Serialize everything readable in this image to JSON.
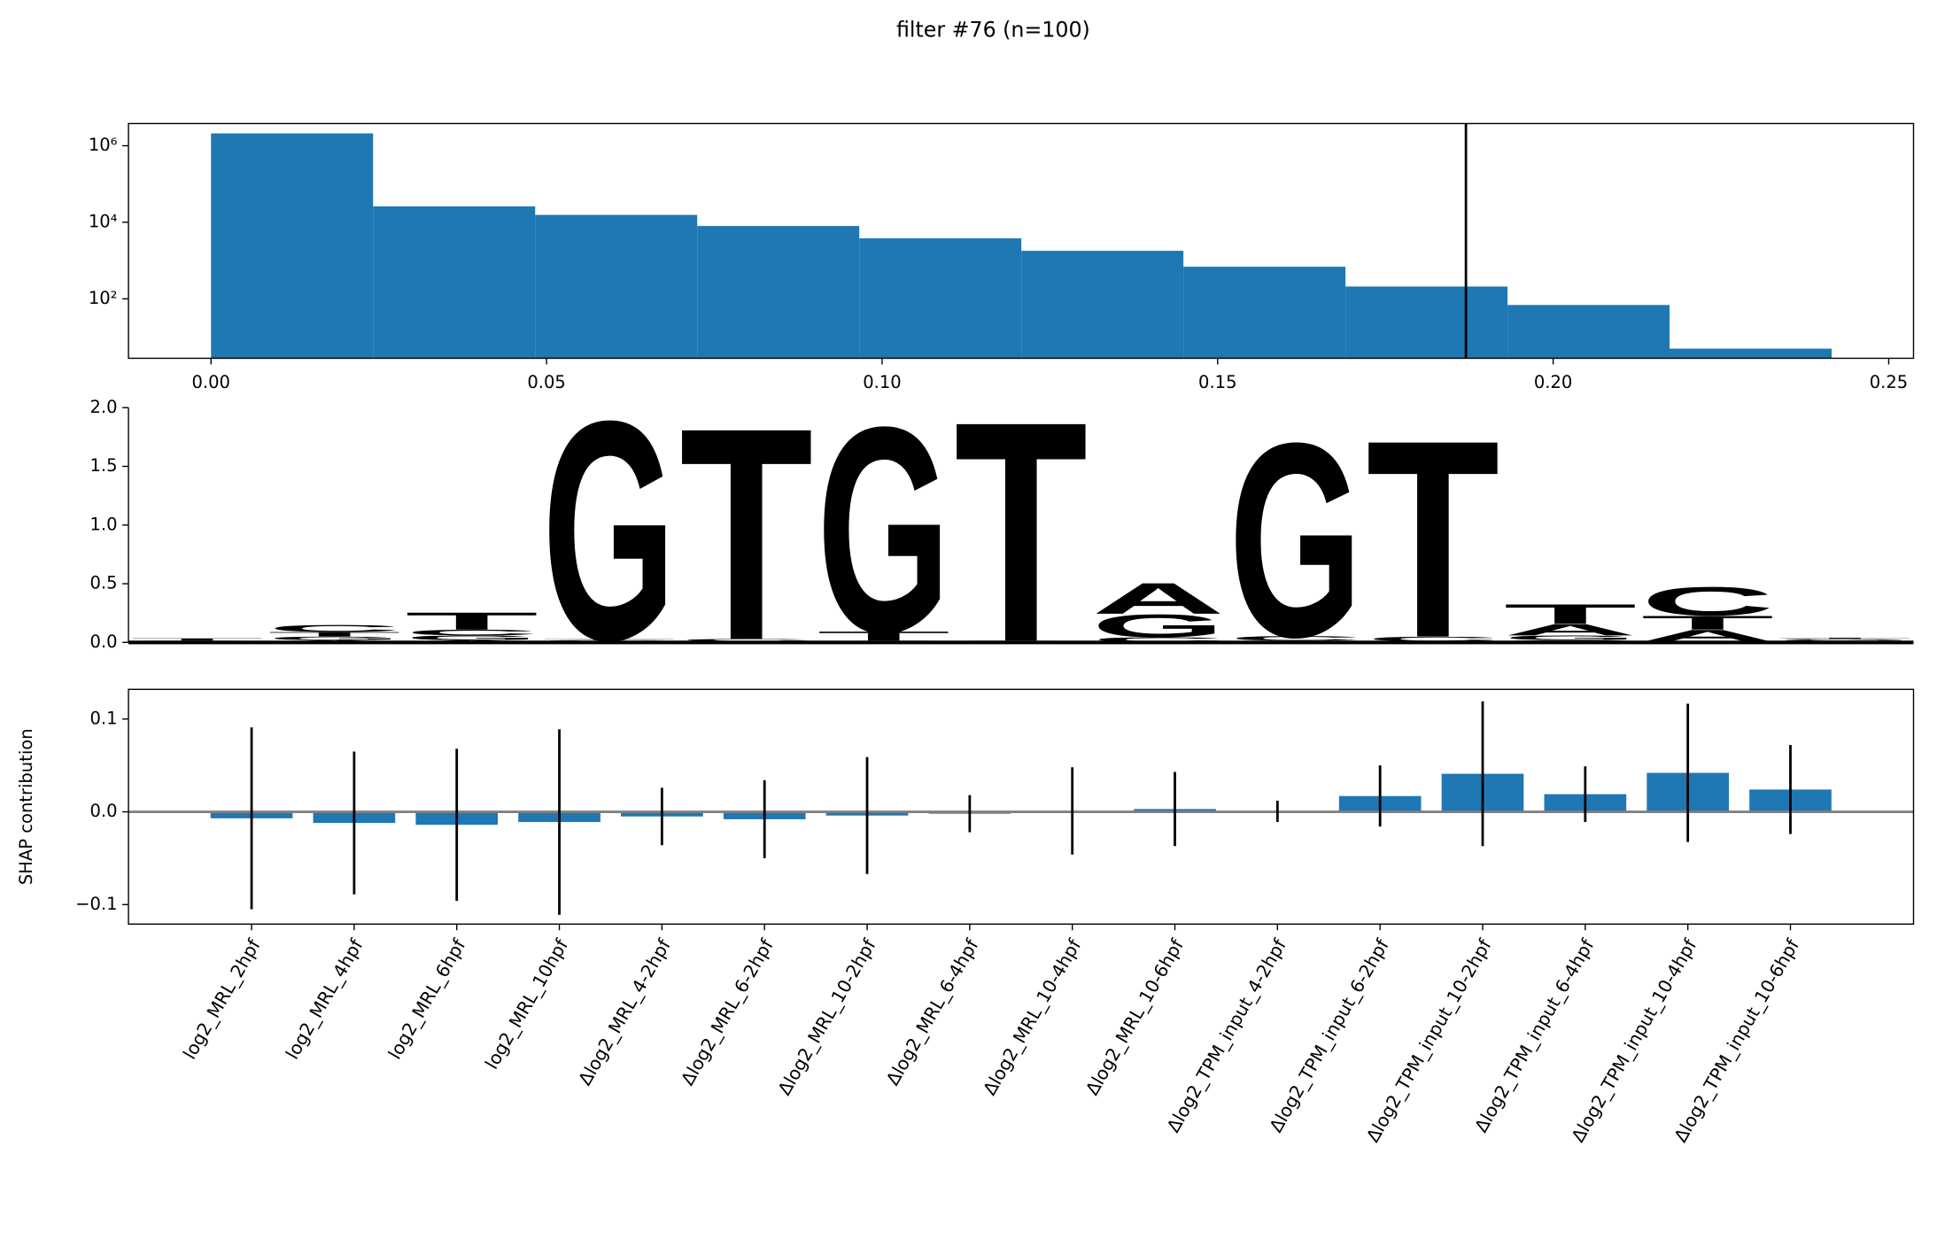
{
  "title": "filter #76 (n=100)",
  "chart_data": [
    {
      "type": "histogram",
      "bins": [
        0,
        0.02415,
        0.0483,
        0.07245,
        0.0966,
        0.12075,
        0.1449,
        0.16905,
        0.1932,
        0.21735,
        0.2415
      ],
      "values": [
        2100000,
        26000,
        15600,
        8000,
        3800,
        1800,
        690,
        210,
        69,
        5
      ],
      "color": "#1f77b4",
      "log_y": true,
      "xlim": [
        -0.0123,
        0.2537
      ],
      "ylim": [
        2.8,
        3800000
      ],
      "xticks": [
        {
          "value": 0,
          "label": "0.00"
        },
        0.05,
        {
          "value": 0.1,
          "label": "0.10"
        },
        0.15,
        {
          "value": 0.2,
          "label": "0.20"
        },
        0.25
      ],
      "yticks": [
        {
          "value": 100,
          "label": "10²"
        },
        {
          "value": 10000,
          "label": "10⁴"
        },
        {
          "value": 1000000,
          "label": "10⁶"
        }
      ],
      "vline": 0.187,
      "vline_color": "#000000"
    },
    {
      "type": "logo",
      "ylim": [
        0,
        2
      ],
      "yticks": [
        {
          "value": 0,
          "label": "0.0"
        },
        0.5,
        {
          "value": 1,
          "label": "1.0"
        },
        1.5,
        {
          "value": 2,
          "label": "2.0"
        }
      ],
      "series": [
        {
          "name": "A",
          "color": "#109648",
          "values": [
            0.005,
            0.02,
            0.02,
            0.01,
            0.005,
            0.005,
            0.005,
            0.27,
            0.01,
            0.005,
            0.1,
            0.1,
            0.01
          ]
        },
        {
          "name": "C",
          "color": "#255c99",
          "values": [
            0.005,
            0.06,
            0.05,
            0.01,
            0.02,
            0.01,
            0.005,
            0.04,
            0.04,
            0.04,
            0.02,
            0.25,
            0.01
          ]
        },
        {
          "name": "G",
          "color": "#f7b32b",
          "values": [
            0.005,
            0.03,
            0.04,
            1.92,
            0.005,
            1.8,
            0.005,
            0.2,
            1.7,
            0.005,
            0.04,
            0.01,
            0.01
          ]
        },
        {
          "name": "T",
          "color": "#d62839",
          "values": [
            0.02,
            0.04,
            0.15,
            0.01,
            1.86,
            0.08,
            1.93,
            0.005,
            0.005,
            1.73,
            0.17,
            0.12,
            0.01
          ]
        }
      ]
    },
    {
      "type": "bar",
      "ylabel": "SHAP contribution",
      "categories": [
        "log2_MRL_2hpf",
        "log2_MRL_4hpf",
        "log2_MRL_6hpf",
        "log2_MRL_10hpf",
        "Δlog2_MRL_4-2hpf",
        "Δlog2_MRL_6-2hpf",
        "Δlog2_MRL_10-2hpf",
        "Δlog2_MRL_6-4hpf",
        "Δlog2_MRL_10-4hpf",
        "Δlog2_MRL_10-6hpf",
        "Δlog2_TPM_input_4-2hpf",
        "Δlog2_TPM_input_6-2hpf",
        "Δlog2_TPM_input_10-2hpf",
        "Δlog2_TPM_input_6-4hpf",
        "Δlog2_TPM_input_10-4hpf",
        "Δlog2_TPM_input_10-6hpf"
      ],
      "values": [
        -0.007,
        -0.012,
        -0.014,
        -0.011,
        -0.005,
        -0.008,
        -0.004,
        -0.002,
        0.001,
        0.003,
        0.0005,
        0.017,
        0.041,
        0.019,
        0.042,
        0.024
      ],
      "errors": [
        0.098,
        0.077,
        0.082,
        0.1,
        0.031,
        0.042,
        0.063,
        0.02,
        0.047,
        0.04,
        0.0115,
        0.033,
        0.078,
        0.03,
        0.0745,
        0.048
      ],
      "color": "#1f77b4",
      "error_color": "#000000",
      "ylim": [
        -0.121,
        0.132
      ],
      "yticks": [
        {
          "value": -0.1,
          "label": "−0.1"
        },
        {
          "value": 0,
          "label": "0.0"
        },
        0.1
      ],
      "hline": 0,
      "hline_color": "#808080"
    }
  ]
}
